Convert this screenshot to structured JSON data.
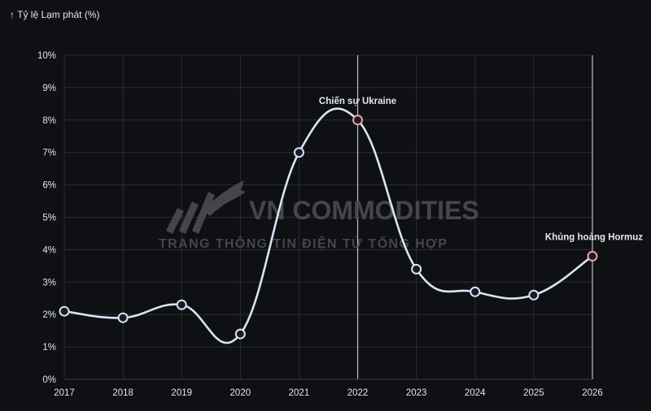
{
  "colors": {
    "background": "#0f1013",
    "grid": "#2b2d33",
    "line": "#d7e4f7",
    "marker_fill": "#1a1c22",
    "highlight_marker": "#e6a3a3",
    "text": "#e4e6ea",
    "marker_line": "#bfbfbf",
    "watermark": "#4a4c52"
  },
  "watermark": {
    "logo_icon": "rising-arrow-logo",
    "brand": "VN COMMODITIES",
    "tagline": "TRANG THÔNG TIN ĐIỆN TỬ TỔNG HỢP"
  },
  "chart_data": {
    "type": "line",
    "title": "",
    "ylabel": "↑ Tỷ lệ Lạm phát (%)",
    "xlabel": "",
    "ylim": [
      0,
      10
    ],
    "y_ticks": [
      "0%",
      "1%",
      "2%",
      "3%",
      "4%",
      "5%",
      "6%",
      "7%",
      "8%",
      "9%",
      "10%"
    ],
    "grid": true,
    "curve": "smooth",
    "series": [
      {
        "x": [
          "2017",
          "2018",
          "2019",
          "2020",
          "2021",
          "2022",
          "2023",
          "2024",
          "2025",
          "2026"
        ],
        "values": [
          2.1,
          1.9,
          2.3,
          1.4,
          7.0,
          8.0,
          3.4,
          2.7,
          2.6,
          3.8
        ]
      }
    ],
    "annotations": [
      {
        "x": "2022",
        "text": "Chiến sự Ukraine",
        "vertical_line": true
      },
      {
        "x": "2026",
        "text": "Khủng hoảng Hormuz",
        "vertical_line": true
      }
    ]
  }
}
